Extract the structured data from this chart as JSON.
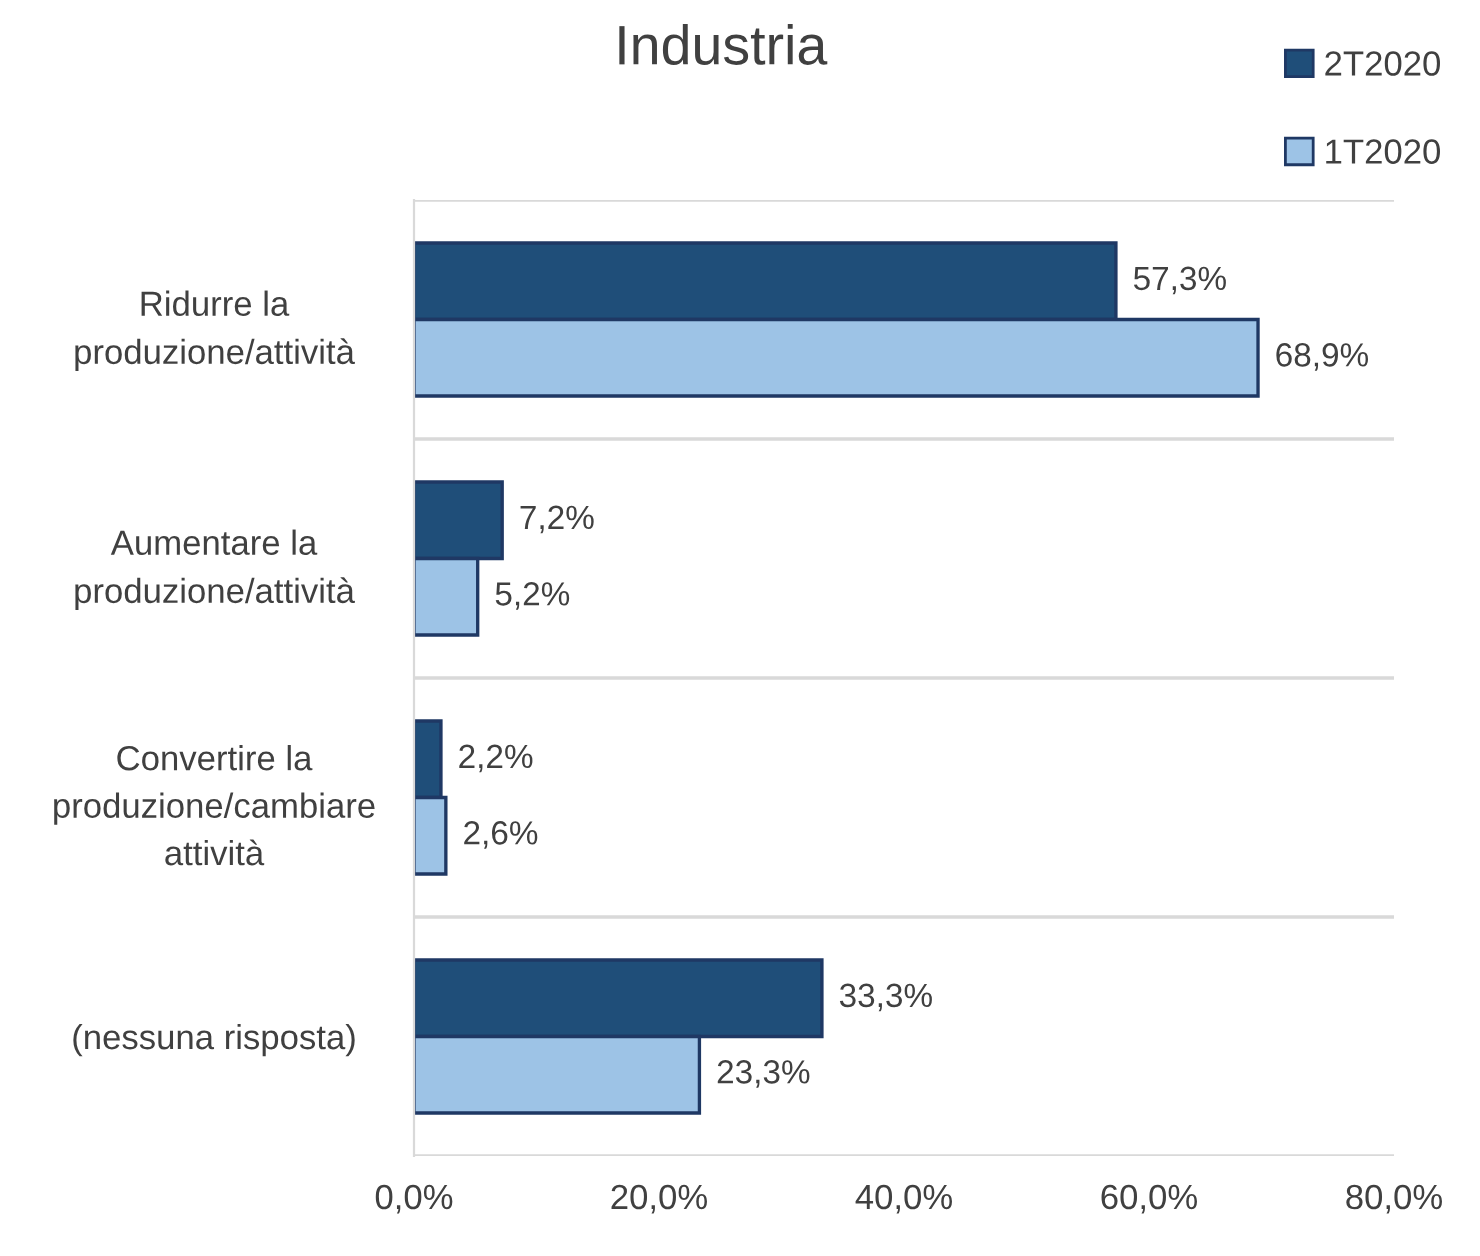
{
  "chart_data": {
    "type": "bar",
    "orientation": "horizontal",
    "title": "Industria",
    "categories": [
      "Ridurre la\nproduzione/attività",
      "Aumentare la\nproduzione/attività",
      "Convertire la\nproduzione/cambiare\nattività",
      "(nessuna risposta)"
    ],
    "series": [
      {
        "name": "2T2020",
        "color": "#1f4e79",
        "values": [
          57.3,
          7.2,
          2.2,
          33.3
        ],
        "value_labels": [
          "57,3%",
          "7,2%",
          "2,2%",
          "33,3%"
        ]
      },
      {
        "name": "1T2020",
        "color": "#9dc3e6",
        "values": [
          68.9,
          5.2,
          2.6,
          23.3
        ],
        "value_labels": [
          "68,9%",
          "5,2%",
          "2,6%",
          "23,3%"
        ]
      }
    ],
    "xlim": [
      0,
      80
    ],
    "xticks": [
      {
        "value": 0,
        "label": "0,0%"
      },
      {
        "value": 20,
        "label": "20,0%"
      },
      {
        "value": 40,
        "label": "40,0%"
      },
      {
        "value": 60,
        "label": "60,0%"
      },
      {
        "value": 80,
        "label": "80,0%"
      }
    ],
    "grid": "y",
    "legend": "top right"
  }
}
